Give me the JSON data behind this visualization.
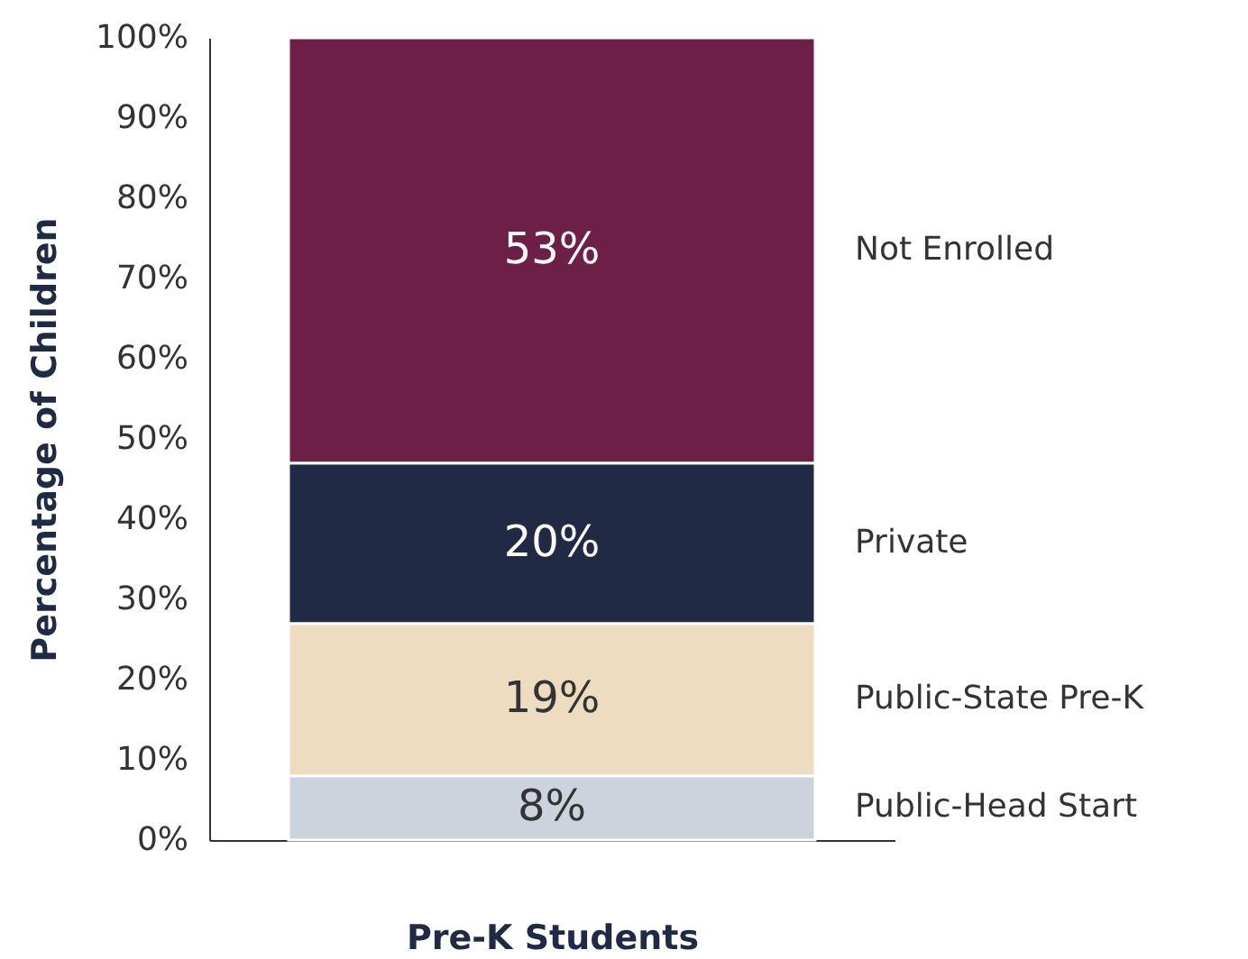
{
  "chart_data": {
    "type": "bar",
    "stacked": true,
    "xlabel": "Pre-K Students",
    "ylabel": "Percentage of Children",
    "categories": [
      null
    ],
    "series": [
      {
        "name": "Public-Head Start",
        "color": "#cbd3dc",
        "values": [
          8
        ],
        "value_labels": [
          "8%"
        ]
      },
      {
        "name": "Public-State Pre-K",
        "color": "#eedcc0",
        "values": [
          19
        ],
        "value_labels": [
          "19%"
        ]
      },
      {
        "name": "Private",
        "color": "#202a44",
        "values": [
          20
        ],
        "value_labels": [
          "20%"
        ]
      },
      {
        "name": "Not Enrolled",
        "color": "#6d1f47",
        "values": [
          53
        ],
        "value_labels": [
          "53%"
        ]
      }
    ],
    "legend": false,
    "grid": false,
    "ylim": [
      0,
      100
    ],
    "yticks": [
      {
        "value": 0,
        "label": "0%"
      },
      {
        "value": 10,
        "label": "10%"
      },
      {
        "value": 20,
        "label": "20%"
      },
      {
        "value": 30,
        "label": "30%"
      },
      {
        "value": 40,
        "label": "40%"
      },
      {
        "value": 50,
        "label": "50%"
      },
      {
        "value": 60,
        "label": "60%"
      },
      {
        "value": 70,
        "label": "70%"
      },
      {
        "value": 80,
        "label": "80%"
      },
      {
        "value": 90,
        "label": "90%"
      },
      {
        "value": 100,
        "label": "100%"
      }
    ]
  }
}
